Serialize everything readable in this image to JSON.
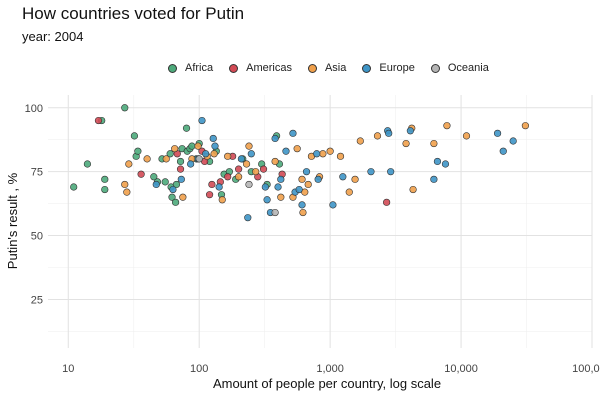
{
  "chart_data": {
    "type": "scatter",
    "title": "How countries voted for Putin",
    "subtitle": "year: 2004",
    "xlabel": "Amount of people per country, log scale",
    "ylabel": "Putin's result , %",
    "x_scale": "log",
    "xlim": [
      7,
      100000
    ],
    "ylim": [
      6,
      105
    ],
    "x_ticks": [
      10,
      100,
      1000,
      10000,
      100000
    ],
    "x_tick_labels": [
      "10",
      "100",
      "1,000",
      "10,000",
      "100,000"
    ],
    "y_ticks": [
      25,
      50,
      75,
      100
    ],
    "y_tick_labels": [
      "25",
      "50",
      "75",
      "100"
    ],
    "grid": true,
    "legend_position": "top",
    "series": [
      {
        "name": "Africa",
        "color": "#4DAA7B",
        "points": [
          [
            11,
            69
          ],
          [
            14,
            78
          ],
          [
            18,
            95
          ],
          [
            19,
            68
          ],
          [
            19,
            72
          ],
          [
            27,
            100
          ],
          [
            32,
            89
          ],
          [
            33,
            81
          ],
          [
            34,
            83
          ],
          [
            45,
            73
          ],
          [
            48,
            71
          ],
          [
            52,
            80
          ],
          [
            55,
            71
          ],
          [
            60,
            82
          ],
          [
            61,
            69
          ],
          [
            62,
            65
          ],
          [
            66,
            63
          ],
          [
            67,
            70
          ],
          [
            72,
            79
          ],
          [
            74,
            84
          ],
          [
            80,
            92
          ],
          [
            81,
            83
          ],
          [
            85,
            84
          ],
          [
            88,
            85
          ],
          [
            95,
            80
          ],
          [
            100,
            86
          ],
          [
            120,
            79
          ],
          [
            135,
            83
          ],
          [
            148,
            66
          ],
          [
            155,
            74
          ],
          [
            170,
            75
          ],
          [
            190,
            72
          ],
          [
            215,
            80
          ],
          [
            250,
            75
          ],
          [
            300,
            78
          ],
          [
            330,
            70
          ],
          [
            390,
            89
          ],
          [
            410,
            78
          ]
        ]
      },
      {
        "name": "Americas",
        "color": "#D24A55",
        "points": [
          [
            17,
            95
          ],
          [
            36,
            74
          ],
          [
            68,
            82
          ],
          [
            72,
            76
          ],
          [
            105,
            83
          ],
          [
            110,
            79
          ],
          [
            120,
            66
          ],
          [
            125,
            70
          ],
          [
            145,
            71
          ],
          [
            165,
            73
          ],
          [
            180,
            81
          ],
          [
            200,
            76
          ],
          [
            280,
            73
          ],
          [
            310,
            76
          ],
          [
            430,
            74
          ],
          [
            2700,
            63
          ]
        ]
      },
      {
        "name": "Asia",
        "color": "#F0A04B",
        "points": [
          [
            27,
            70
          ],
          [
            28,
            67
          ],
          [
            29,
            78
          ],
          [
            40,
            80
          ],
          [
            56,
            80
          ],
          [
            65,
            84
          ],
          [
            75,
            65
          ],
          [
            88,
            80
          ],
          [
            98,
            85
          ],
          [
            115,
            81
          ],
          [
            130,
            82
          ],
          [
            150,
            64
          ],
          [
            165,
            81
          ],
          [
            200,
            73
          ],
          [
            230,
            78
          ],
          [
            240,
            85
          ],
          [
            270,
            75
          ],
          [
            380,
            79
          ],
          [
            420,
            65
          ],
          [
            520,
            65
          ],
          [
            560,
            84
          ],
          [
            610,
            72
          ],
          [
            620,
            59
          ],
          [
            640,
            67
          ],
          [
            680,
            70
          ],
          [
            720,
            81
          ],
          [
            830,
            73
          ],
          [
            880,
            82
          ],
          [
            1000,
            83
          ],
          [
            1200,
            81
          ],
          [
            1400,
            67
          ],
          [
            1550,
            72
          ],
          [
            1700,
            87
          ],
          [
            2300,
            89
          ],
          [
            3800,
            86
          ],
          [
            4200,
            92
          ],
          [
            4300,
            68
          ],
          [
            6200,
            86
          ],
          [
            7800,
            93
          ],
          [
            11000,
            89
          ],
          [
            31000,
            93
          ]
        ]
      },
      {
        "name": "Europe",
        "color": "#3E95C7",
        "points": [
          [
            47,
            70
          ],
          [
            63,
            68
          ],
          [
            73,
            72
          ],
          [
            86,
            78
          ],
          [
            98,
            80
          ],
          [
            105,
            95
          ],
          [
            112,
            82
          ],
          [
            128,
            88
          ],
          [
            132,
            85
          ],
          [
            142,
            69
          ],
          [
            210,
            80
          ],
          [
            235,
            57
          ],
          [
            250,
            82
          ],
          [
            320,
            69
          ],
          [
            330,
            64
          ],
          [
            350,
            59
          ],
          [
            380,
            88
          ],
          [
            400,
            69
          ],
          [
            420,
            72
          ],
          [
            460,
            83
          ],
          [
            520,
            90
          ],
          [
            540,
            67
          ],
          [
            580,
            68
          ],
          [
            610,
            62
          ],
          [
            660,
            75
          ],
          [
            790,
            82
          ],
          [
            810,
            72
          ],
          [
            1050,
            62
          ],
          [
            1250,
            73
          ],
          [
            2050,
            75
          ],
          [
            2750,
            91
          ],
          [
            2800,
            90
          ],
          [
            2900,
            75
          ],
          [
            4100,
            91
          ],
          [
            6200,
            72
          ],
          [
            6600,
            79
          ],
          [
            7600,
            78
          ],
          [
            19000,
            90
          ],
          [
            21000,
            83
          ],
          [
            25000,
            87
          ]
        ]
      },
      {
        "name": "Oceania",
        "color": "#B5B5B5",
        "points": [
          [
            100,
            80
          ],
          [
            240,
            70
          ],
          [
            380,
            59
          ]
        ]
      }
    ]
  }
}
